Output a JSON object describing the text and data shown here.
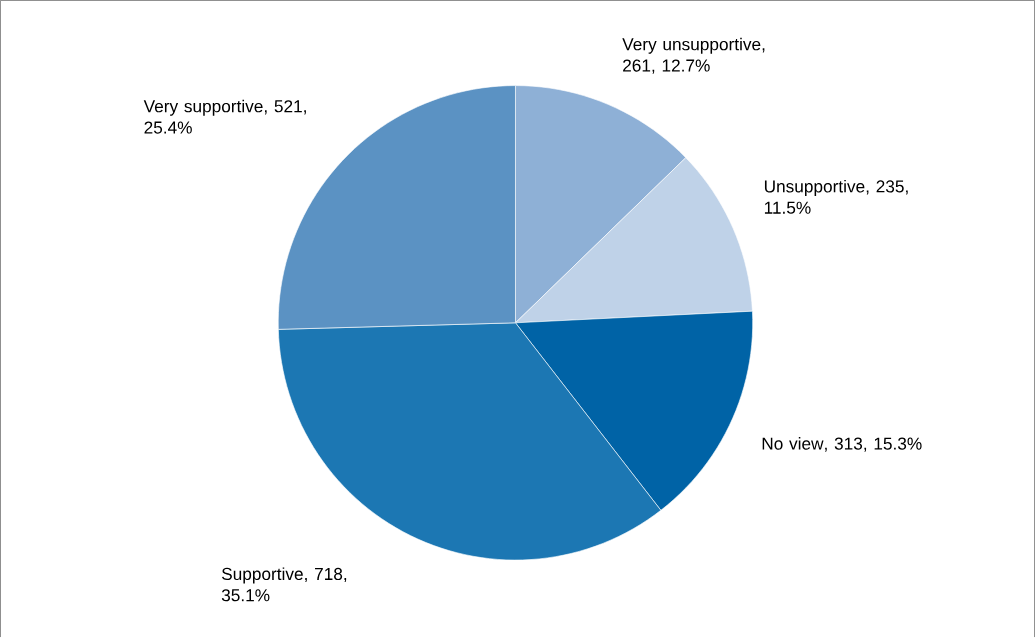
{
  "chart_data": {
    "type": "pie",
    "categories": [
      "Very unsupportive",
      "Unsupportive",
      "No view",
      "Supportive",
      "Very supportive"
    ],
    "values": [
      261,
      235,
      313,
      718,
      521
    ],
    "value_labels": [
      ", 261, 12.7%",
      ", 235, 11.5%",
      ", 313, 15.3%",
      ", 718, 35.1%",
      ", 521, 25.4%"
    ],
    "colors": [
      "#8eb0d6",
      "#bfd2e8",
      "#0063a6",
      "#1c77b3",
      "#5b92c3"
    ]
  }
}
